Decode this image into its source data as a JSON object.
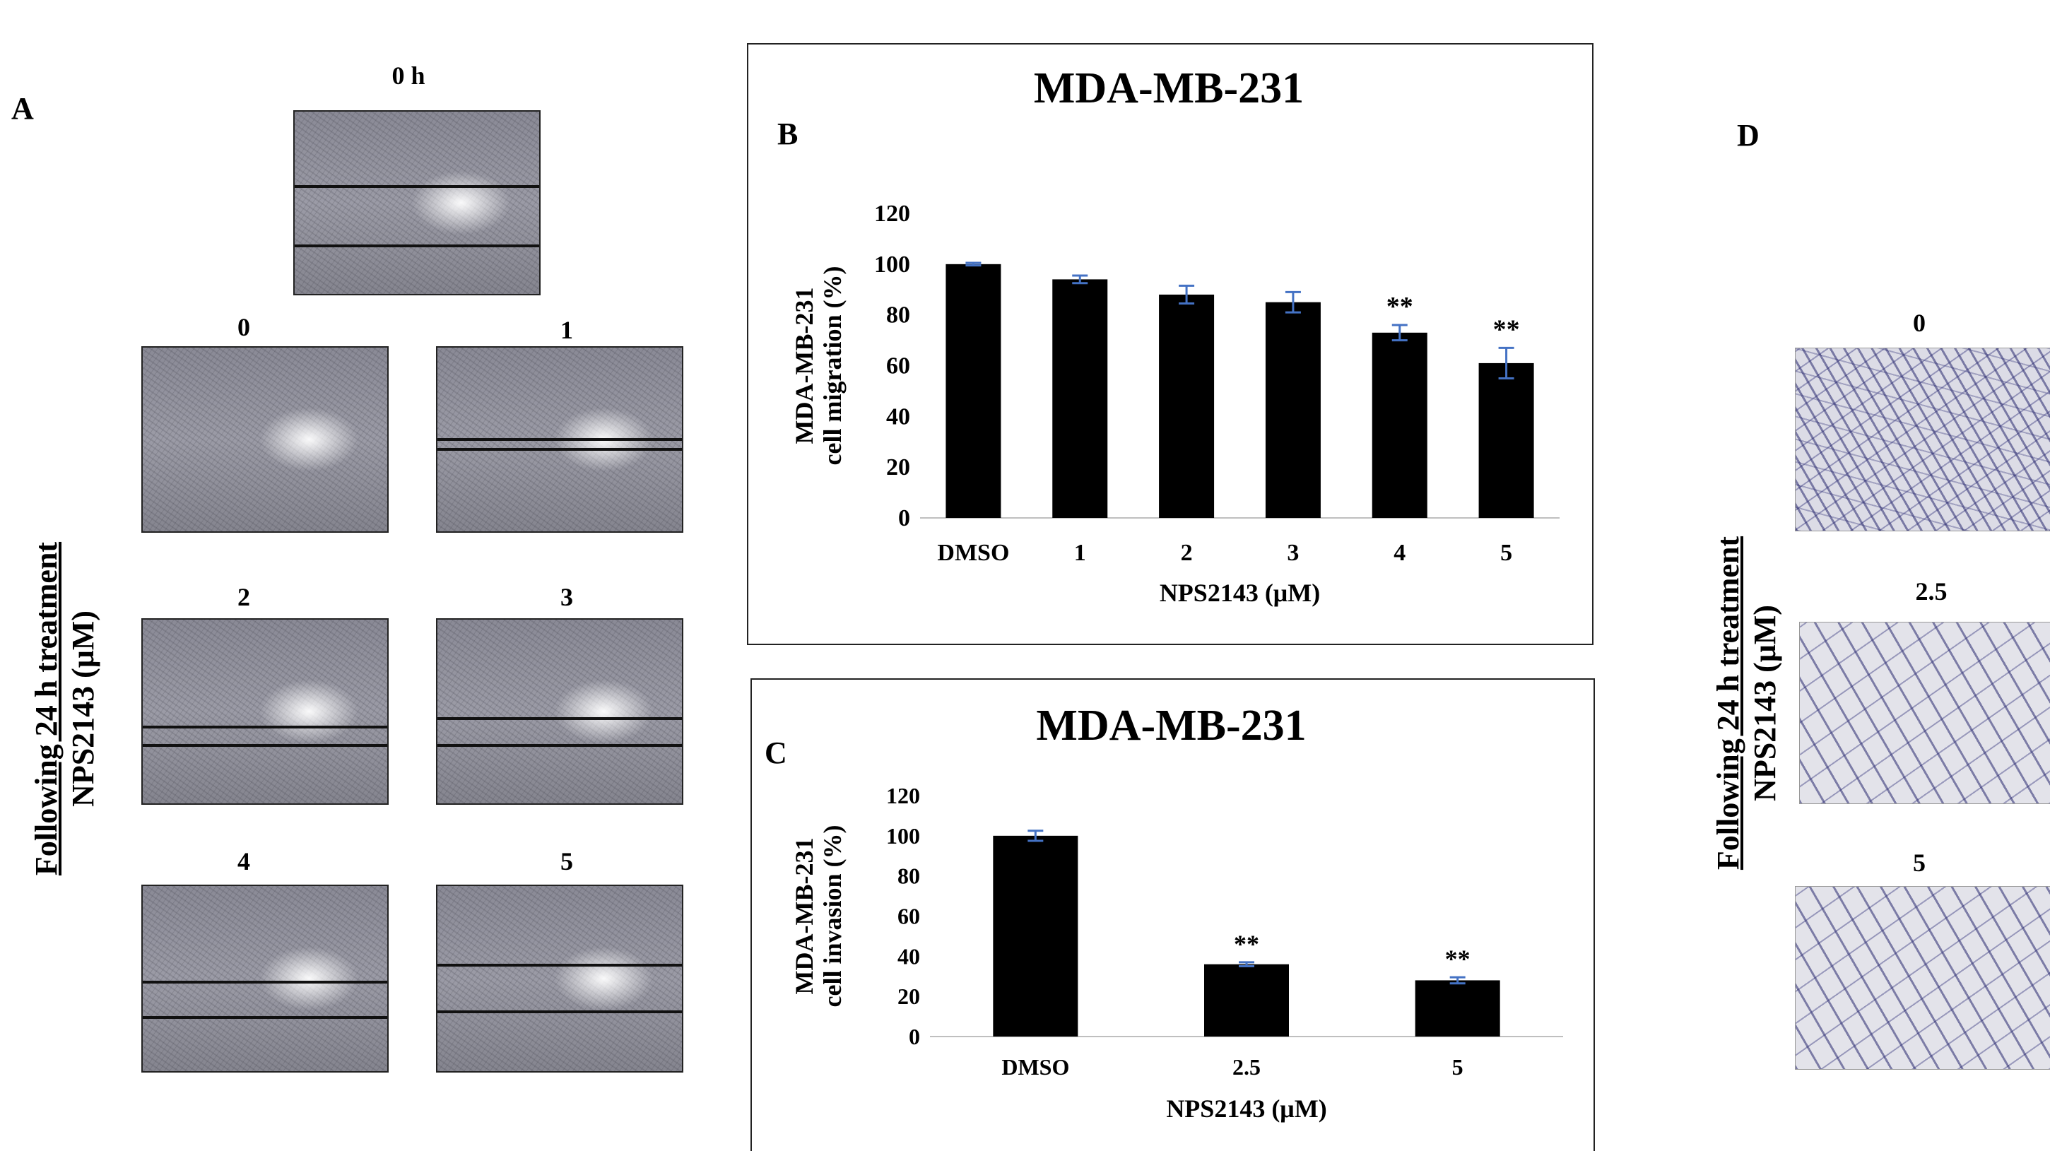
{
  "panels": {
    "a": {
      "letter": "A",
      "time_label": "0 h",
      "concentrations": [
        "0",
        "1",
        "2",
        "3",
        "4",
        "5"
      ],
      "side_label_line1": "Following 24 h treatment",
      "side_label_line2": "NPS2143 (μM)"
    },
    "b": {
      "letter": "B"
    },
    "c": {
      "letter": "C"
    },
    "d": {
      "letter": "D",
      "concentrations": [
        "0",
        "2.5",
        "5"
      ],
      "side_label_line1": "Following 24 h treatment",
      "side_label_line2": "NPS2143 (μM)"
    }
  },
  "colors": {
    "bar": "#000000",
    "error_bar": "#4472c4",
    "axis": "#bfbfbf"
  },
  "chart_data": [
    {
      "id": "migration",
      "type": "bar",
      "title": "MDA-MB-231",
      "categories": [
        "DMSO",
        "1",
        "2",
        "3",
        "4",
        "5"
      ],
      "values": [
        100,
        94,
        88,
        85,
        73,
        61
      ],
      "errors": [
        0.5,
        1.5,
        3.5,
        4,
        3,
        6
      ],
      "annotations": [
        "",
        "",
        "",
        "",
        "**",
        "**"
      ],
      "xlabel": "NPS2143 (μM)",
      "ylabel_line1": "MDA-MB-231",
      "ylabel_line2": "cell migration (%)",
      "ylim": [
        0,
        120
      ],
      "yticks": [
        0,
        20,
        40,
        60,
        80,
        100,
        120
      ]
    },
    {
      "id": "invasion",
      "type": "bar",
      "title": "MDA-MB-231",
      "categories": [
        "DMSO",
        "2.5",
        "5"
      ],
      "values": [
        100,
        36,
        28
      ],
      "errors": [
        2.5,
        1,
        1.5
      ],
      "annotations": [
        "",
        "**",
        "**"
      ],
      "xlabel": "NPS2143 (μM)",
      "ylabel_line1": "MDA-MB-231",
      "ylabel_line2": "cell invasion (%)",
      "ylim": [
        0,
        120
      ],
      "yticks": [
        0,
        20,
        40,
        60,
        80,
        100,
        120
      ]
    }
  ]
}
